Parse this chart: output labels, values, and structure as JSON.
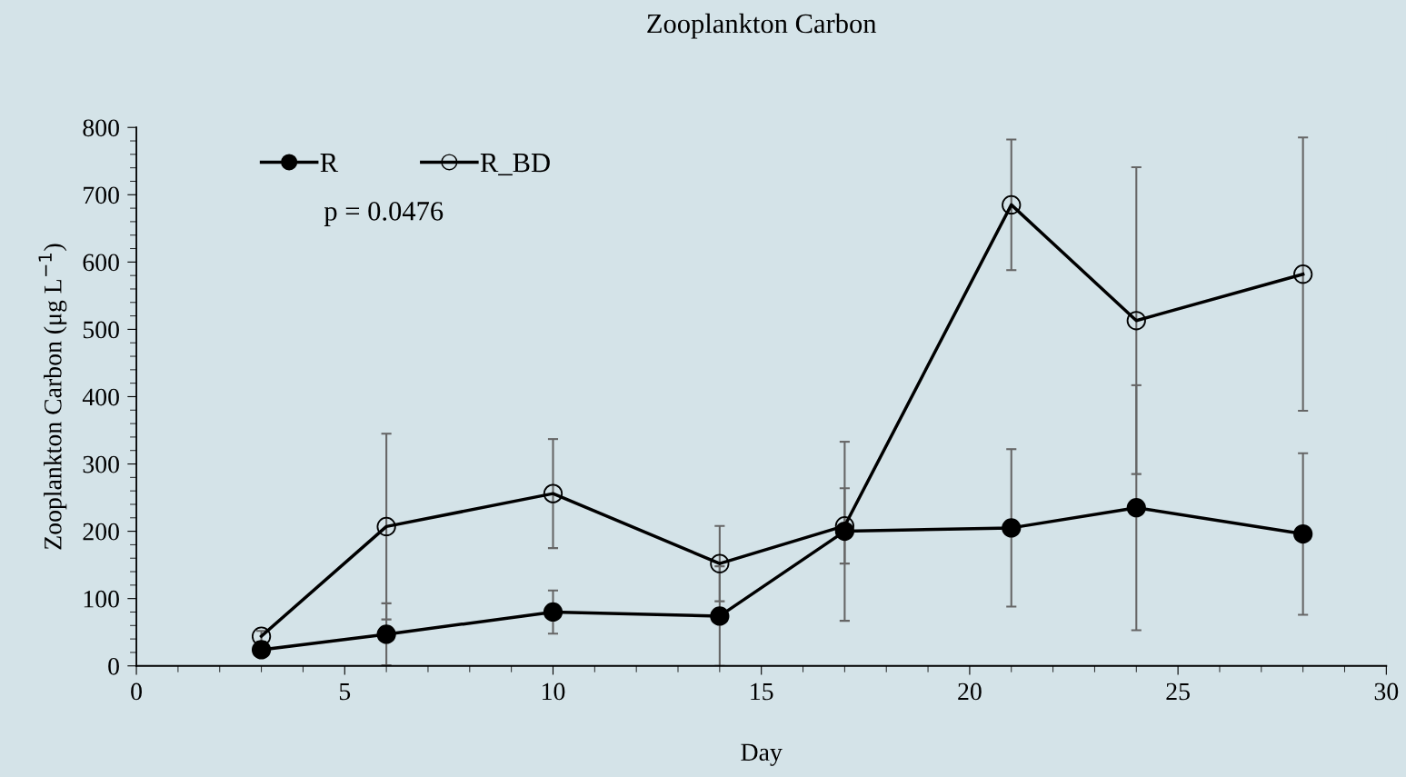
{
  "chart_data": {
    "type": "line",
    "title": "Zooplankton Carbon",
    "xlabel": "Day",
    "ylabel": "Zooplankton Carbon (μg L$^{−1}$)",
    "x": [
      3,
      6,
      10,
      14,
      17,
      21,
      24,
      28
    ],
    "series": [
      {
        "name": "R",
        "color": "#000000",
        "marker": "circle",
        "values": [
          24,
          47,
          80,
          74,
          200,
          205,
          235,
          196
        ],
        "errors": [
          6,
          46,
          32,
          74,
          133,
          117,
          182,
          120
        ]
      },
      {
        "name": "R_BD",
        "color": "#000000",
        "marker": "circle",
        "values": [
          44,
          207,
          256,
          152,
          208,
          685,
          513,
          582
        ],
        "errors": [
          8,
          138,
          81,
          56,
          56,
          97,
          228,
          203
        ]
      }
    ],
    "xlim": [
      0,
      30
    ],
    "xticks": [
      0,
      5,
      10,
      15,
      20,
      25,
      30
    ],
    "ylim": [
      0,
      800
    ],
    "yticks": [
      0,
      100,
      200,
      300,
      400,
      500,
      600,
      700,
      800
    ],
    "legend": "top left",
    "grid": false,
    "line_style": "solid",
    "annotations": [
      {
        "text": "p = 0.0476"
      }
    ]
  }
}
